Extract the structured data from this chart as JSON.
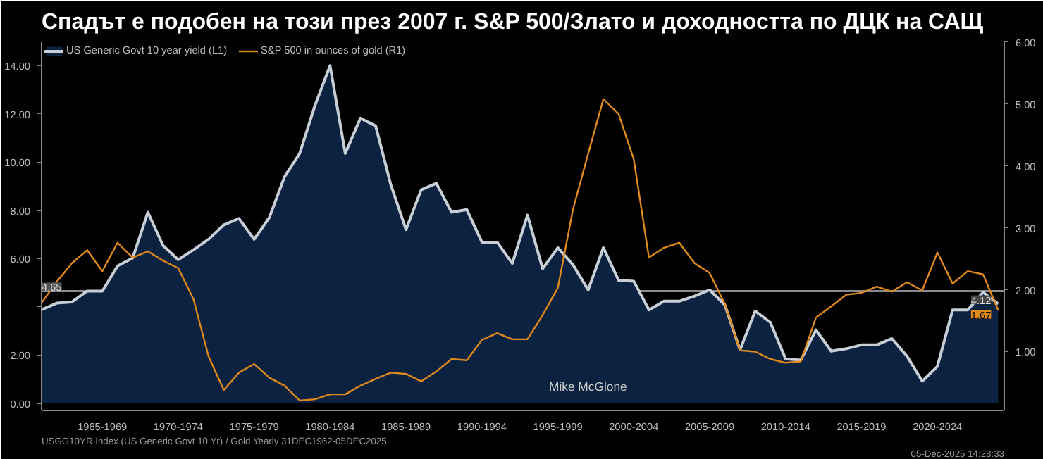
{
  "chart_data": {
    "type": "line",
    "title": "Спадът е подобен на този през 2007 г. S&P 500/Злато и доходността по ДЦК на САЩ",
    "categories": [
      null,
      null,
      null,
      null,
      "1965-1969",
      null,
      null,
      null,
      null,
      "1970-1974",
      null,
      null,
      null,
      null,
      "1975-1979",
      null,
      null,
      null,
      null,
      "1980-1984",
      null,
      null,
      null,
      null,
      "1985-1989",
      null,
      null,
      null,
      null,
      "1990-1994",
      null,
      null,
      null,
      null,
      "1995-1999",
      null,
      null,
      null,
      null,
      "2000-2004",
      null,
      null,
      null,
      null,
      "2005-2009",
      null,
      null,
      null,
      null,
      "2010-2014",
      null,
      null,
      null,
      null,
      "2015-2019",
      null,
      null,
      null,
      null,
      "2020-2024",
      null,
      null,
      null,
      null
    ],
    "series": [
      {
        "name": "US Generic Govt 10 year yield (L1)",
        "type": "area",
        "color": "#c8ced6",
        "values": [
          3.88,
          4.15,
          4.2,
          4.65,
          4.65,
          5.69,
          6.02,
          7.92,
          6.54,
          5.95,
          6.36,
          6.8,
          7.4,
          7.66,
          6.8,
          7.7,
          9.39,
          10.36,
          12.34,
          14.0,
          10.36,
          11.82,
          11.5,
          9.06,
          7.2,
          8.85,
          9.12,
          7.92,
          8.03,
          6.68,
          6.68,
          5.8,
          7.8,
          5.58,
          6.45,
          5.74,
          4.7,
          6.45,
          5.1,
          5.06,
          3.87,
          4.23,
          4.23,
          4.44,
          4.7,
          4.08,
          2.21,
          3.82,
          3.35,
          1.84,
          1.79,
          3.04,
          2.16,
          2.26,
          2.42,
          2.42,
          2.68,
          1.95,
          0.91,
          1.53,
          3.87,
          3.87,
          4.6,
          4.12
        ],
        "value_labels": [
          null,
          null,
          null,
          null,
          null,
          null,
          null,
          null,
          null,
          null,
          null,
          null,
          null,
          null,
          null,
          null,
          null,
          null,
          null,
          null,
          null,
          null,
          null,
          null,
          null,
          null,
          null,
          null,
          null,
          null,
          null,
          null,
          null,
          null,
          null,
          null,
          null,
          null,
          null,
          null,
          null,
          null,
          null,
          null,
          null,
          null,
          null,
          null,
          null,
          null,
          null,
          null,
          null,
          null,
          null,
          null,
          null,
          null,
          null,
          null,
          null,
          null,
          null,
          "4.12"
        ]
      },
      {
        "name": "S&P 500 in ounces of gold (R1)",
        "axis": "y2",
        "color": "#e08a1e",
        "values": [
          1.79,
          2.13,
          2.43,
          2.64,
          2.3,
          2.76,
          2.52,
          2.62,
          2.47,
          2.35,
          1.85,
          0.92,
          0.38,
          0.66,
          0.8,
          0.58,
          0.45,
          0.21,
          0.23,
          0.31,
          0.31,
          0.45,
          0.56,
          0.66,
          0.64,
          0.52,
          0.68,
          0.88,
          0.86,
          1.19,
          1.3,
          1.2,
          1.2,
          1.59,
          2.03,
          3.3,
          4.2,
          5.08,
          4.84,
          4.11,
          2.52,
          2.68,
          2.76,
          2.43,
          2.27,
          1.77,
          1.02,
          1.0,
          0.88,
          0.82,
          0.84,
          1.55,
          1.73,
          1.92,
          1.95,
          2.05,
          1.97,
          2.12,
          1.99,
          2.6,
          2.1,
          2.3,
          2.25,
          1.67
        ],
        "value_labels": [
          null,
          null,
          null,
          null,
          null,
          null,
          null,
          null,
          null,
          null,
          null,
          null,
          null,
          null,
          null,
          null,
          null,
          null,
          null,
          null,
          null,
          null,
          null,
          null,
          null,
          null,
          null,
          null,
          null,
          null,
          null,
          null,
          null,
          null,
          null,
          null,
          null,
          null,
          null,
          null,
          null,
          null,
          null,
          null,
          null,
          null,
          null,
          null,
          null,
          null,
          null,
          null,
          null,
          null,
          null,
          null,
          null,
          null,
          null,
          null,
          null,
          null,
          null,
          "1.67"
        ]
      }
    ],
    "ylim": [
      -0.3,
      15.0
    ],
    "yticks": [
      {
        "value": 0,
        "label": "0.00"
      },
      {
        "value": 2,
        "label": "2.00"
      },
      {
        "value": 4,
        "label": null
      },
      {
        "value": 6,
        "label": "6.00"
      },
      {
        "value": 8,
        "label": "8.00"
      },
      {
        "value": 10,
        "label": "10.00"
      },
      {
        "value": 12,
        "label": "12.00"
      },
      {
        "value": 14,
        "label": "14.00"
      }
    ],
    "y2lim": [
      0.05,
      6.01
    ],
    "y2ticks": [
      {
        "value": 1,
        "label": "1.00"
      },
      {
        "value": 2,
        "label": "2.00"
      },
      {
        "value": 3,
        "label": "3.00"
      },
      {
        "value": 4,
        "label": "4.00"
      },
      {
        "value": 5,
        "label": "5.00"
      },
      {
        "value": 6,
        "label": "6.00"
      }
    ],
    "ref_lines": [
      {
        "axis": "y",
        "value": 4.65,
        "label": "4.65",
        "color": "#8a8a8a"
      }
    ],
    "annotations": [
      "Mike McGlone",
      "USGG10YR Index (US Generic Govt 10 Yr) / Gold Yearly 31DEC1962-05DEC2025",
      "05-Dec-2025 14:28:33"
    ],
    "legend": "top left",
    "grid": false
  }
}
